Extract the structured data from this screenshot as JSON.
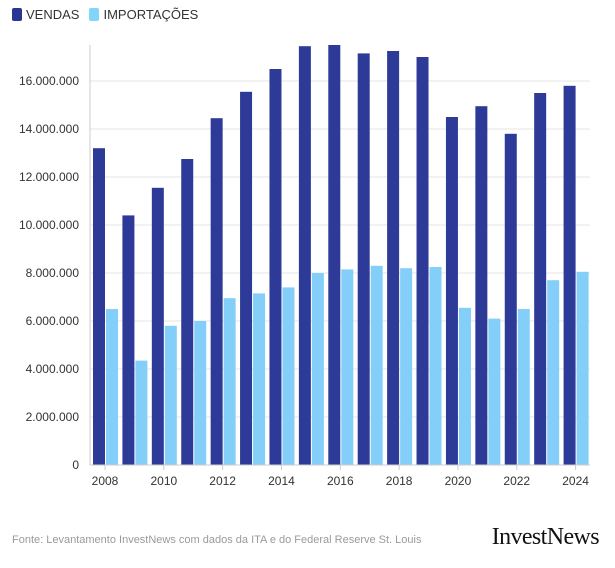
{
  "legend": {
    "items": [
      {
        "label": "VENDAS",
        "color": "#283593"
      },
      {
        "label": "IMPORTAÇÕES",
        "color": "#81d4fa"
      }
    ]
  },
  "footer": {
    "source": "Fonte: Levantamento InvestNews com dados da ITA e do Federal Reserve St. Louis",
    "logo": "InvestNews"
  },
  "chart_data": {
    "type": "bar",
    "categories": [
      "2008",
      "2009",
      "2010",
      "2011",
      "2012",
      "2013",
      "2014",
      "2015",
      "2016",
      "2017",
      "2018",
      "2019",
      "2020",
      "2021",
      "2022",
      "2023",
      "2024"
    ],
    "series": [
      {
        "name": "VENDAS",
        "color": "#2e3a97",
        "values": [
          13200000,
          10400000,
          11550000,
          12750000,
          14450000,
          15550000,
          16500000,
          17450000,
          17500000,
          17150000,
          17250000,
          17000000,
          14500000,
          14950000,
          13800000,
          15500000,
          15800000
        ]
      },
      {
        "name": "IMPORTAÇÕES",
        "color": "#84cff9",
        "values": [
          6500000,
          4350000,
          5800000,
          6000000,
          6950000,
          7150000,
          7400000,
          8000000,
          8150000,
          8300000,
          8200000,
          8250000,
          6550000,
          6100000,
          6500000,
          7700000,
          8050000
        ]
      }
    ],
    "x_tick_labels": [
      "2008",
      "2010",
      "2012",
      "2014",
      "2016",
      "2018",
      "2020",
      "2022",
      "2024"
    ],
    "y_ticks": [
      0,
      2000000,
      4000000,
      6000000,
      8000000,
      10000000,
      12000000,
      14000000,
      16000000
    ],
    "y_tick_labels": [
      "0",
      "2.000.000",
      "4.000.000",
      "6.000.000",
      "8.000.000",
      "10.000.000",
      "12.000.000",
      "14.000.000",
      "16.000.000"
    ],
    "ylim": [
      0,
      18000000
    ],
    "grid": true,
    "legend_position": "top-left"
  }
}
